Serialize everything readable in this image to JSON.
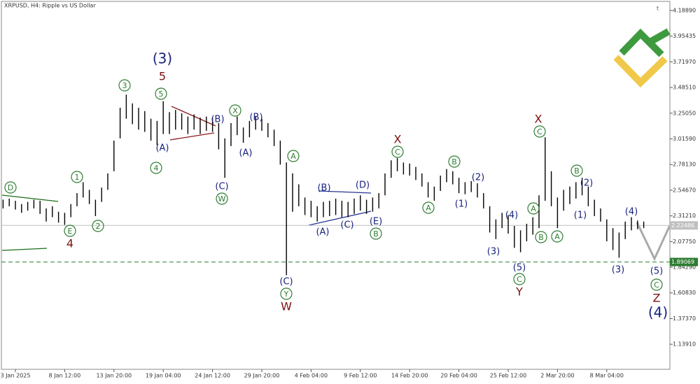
{
  "chart_data": {
    "type": "ohlc",
    "title": "XRPUSD, H4:  Ripple vs US Dollar",
    "x": [
      null,
      null,
      "3 Jan 2025",
      null,
      null,
      null,
      null,
      null,
      null,
      null,
      "8 Jan 12:00",
      null,
      null,
      null,
      null,
      null,
      null,
      null,
      "13 Jan 20:00",
      null,
      null,
      null,
      null,
      null,
      null,
      null,
      "19 Jan 04:00",
      null,
      null,
      null,
      null,
      null,
      null,
      null,
      "24 Jan 12:00",
      null,
      null,
      null,
      null,
      null,
      null,
      null,
      "29 Jan 20:00",
      null,
      null,
      null,
      null,
      null,
      null,
      null,
      "4 Feb 04:00",
      null,
      null,
      null,
      null,
      null,
      null,
      null,
      "9 Feb 12:00",
      null,
      null,
      null,
      null,
      null,
      null,
      null,
      "14 Feb 20:00",
      null,
      null,
      null,
      null,
      null,
      null,
      null,
      "20 Feb 04:00",
      null,
      null,
      null,
      null,
      null,
      null,
      null,
      "25 Feb 12:00",
      null,
      null,
      null,
      null,
      null,
      null,
      null,
      "2 Mar 20:00",
      null,
      null,
      null,
      null,
      null,
      null,
      null,
      "8 Mar 04:00",
      null,
      null,
      null,
      null,
      null,
      null
    ],
    "high": [
      2.46,
      2.47,
      2.45,
      2.42,
      2.44,
      2.46,
      2.45,
      2.38,
      2.4,
      2.35,
      2.34,
      2.42,
      2.52,
      2.62,
      2.55,
      2.46,
      2.57,
      2.7,
      3.0,
      3.3,
      3.42,
      3.34,
      3.3,
      3.27,
      3.2,
      3.18,
      3.36,
      3.26,
      3.28,
      3.25,
      3.22,
      3.24,
      3.21,
      3.22,
      3.21,
      3.16,
      3.02,
      3.16,
      3.22,
      3.12,
      3.18,
      3.22,
      3.2,
      3.16,
      3.1,
      3.0,
      2.8,
      2.7,
      2.6,
      2.48,
      2.45,
      2.4,
      2.44,
      2.45,
      2.47,
      2.45,
      2.44,
      2.47,
      2.5,
      2.46,
      2.48,
      2.52,
      2.7,
      2.82,
      2.84,
      2.8,
      2.79,
      2.76,
      2.7,
      2.62,
      2.58,
      2.68,
      2.74,
      2.72,
      2.66,
      2.62,
      2.63,
      2.61,
      2.52,
      2.4,
      2.28,
      2.34,
      2.32,
      2.22,
      2.18,
      2.24,
      2.3,
      2.5,
      3.03,
      2.72,
      2.48,
      2.55,
      2.58,
      2.62,
      2.66,
      2.58,
      2.46,
      2.38,
      2.28,
      2.2,
      2.16,
      2.26,
      2.3,
      2.27,
      2.26
    ],
    "low": [
      2.38,
      2.4,
      2.37,
      2.34,
      2.36,
      2.38,
      2.33,
      2.26,
      2.3,
      2.25,
      2.23,
      2.3,
      2.4,
      2.48,
      2.42,
      2.31,
      2.44,
      2.55,
      2.72,
      3.02,
      3.2,
      3.15,
      3.1,
      3.08,
      3.0,
      2.96,
      3.06,
      3.06,
      3.1,
      3.1,
      3.06,
      3.1,
      3.06,
      3.09,
      3.08,
      2.92,
      2.66,
      2.95,
      3.05,
      2.98,
      3.03,
      3.1,
      3.09,
      3.03,
      2.95,
      2.78,
      1.77,
      2.35,
      2.4,
      2.32,
      2.3,
      2.26,
      2.3,
      2.31,
      2.32,
      2.3,
      2.3,
      2.33,
      2.36,
      2.33,
      2.35,
      2.38,
      2.5,
      2.66,
      2.72,
      2.69,
      2.68,
      2.64,
      2.58,
      2.48,
      2.45,
      2.54,
      2.62,
      2.6,
      2.52,
      2.51,
      2.53,
      2.48,
      2.38,
      2.16,
      2.1,
      2.2,
      2.15,
      2.02,
      1.98,
      2.08,
      2.14,
      2.2,
      2.45,
      2.4,
      2.2,
      2.36,
      2.42,
      2.47,
      2.5,
      2.4,
      2.31,
      2.26,
      2.08,
      2.0,
      1.93,
      2.1,
      2.18,
      2.19,
      2.2
    ],
    "color": "#000000",
    "ylim": [
      0.91,
      4.272
    ],
    "yticks": [
      {
        "value": 4.1889,
        "label": "4.18890"
      },
      {
        "value": 3.95435,
        "label": "3.95435"
      },
      {
        "value": 3.7197,
        "label": "3.71970"
      },
      {
        "value": 3.4851,
        "label": "3.48510"
      },
      {
        "value": 3.2505,
        "label": "3.25050"
      },
      {
        "value": 3.0159,
        "label": "3.01590"
      },
      {
        "value": 2.7813,
        "label": "2.78130"
      },
      {
        "value": 2.5467,
        "label": "2.54670"
      },
      {
        "value": 2.3121,
        "label": "2.31210"
      },
      {
        "value": 2.0775,
        "label": "2.07750"
      },
      {
        "value": 1.8429,
        "label": "1.84290"
      },
      {
        "value": 1.6083,
        "label": "1.60830"
      },
      {
        "value": 1.3737,
        "label": "1.37370"
      },
      {
        "value": 1.1391,
        "label": "1.13910"
      }
    ],
    "price_lines": [
      {
        "value": 2.22486,
        "color": "#c0c0c0"
      },
      {
        "value": 1.89069,
        "color": "#2e7d32"
      }
    ],
    "annotations": [
      {
        "text": "(3)",
        "color": "#1a237e"
      },
      {
        "text": "5",
        "color": "#7b1010"
      },
      {
        "text": "3",
        "color": "#2e7d32",
        "circled": true
      },
      {
        "text": "5",
        "color": "#2e7d32",
        "circled": true
      },
      {
        "text": "(A)",
        "color": "#1a237e"
      },
      {
        "text": "4",
        "color": "#2e7d32",
        "circled": true
      },
      {
        "text": "1",
        "color": "#2e7d32",
        "circled": true
      },
      {
        "text": "2",
        "color": "#2e7d32",
        "circled": true
      },
      {
        "text": "D",
        "color": "#2e7d32",
        "circled": true
      },
      {
        "text": "E",
        "color": "#2e7d32",
        "circled": true
      },
      {
        "text": "4",
        "color": "#7b1010"
      },
      {
        "text": "(B)",
        "color": "#1a237e"
      },
      {
        "text": "X",
        "color": "#2e7d32",
        "circled": true
      },
      {
        "text": "(B)",
        "color": "#1a237e"
      },
      {
        "text": "(A)",
        "color": "#1a237e"
      },
      {
        "text": "(C)",
        "color": "#1a237e"
      },
      {
        "text": "W",
        "color": "#2e7d32",
        "circled": true
      },
      {
        "text": "A",
        "color": "#2e7d32",
        "circled": true
      },
      {
        "text": "(C)",
        "color": "#1a237e"
      },
      {
        "text": "Y",
        "color": "#2e7d32",
        "circled": true
      },
      {
        "text": "W",
        "color": "#7b1010"
      },
      {
        "text": "(B)",
        "color": "#1a237e"
      },
      {
        "text": "(D)",
        "color": "#1a237e"
      },
      {
        "text": "(A)",
        "color": "#1a237e"
      },
      {
        "text": "(C)",
        "color": "#1a237e"
      },
      {
        "text": "(E)",
        "color": "#1a237e"
      },
      {
        "text": "B",
        "color": "#2e7d32",
        "circled": true
      },
      {
        "text": "X",
        "color": "#7b1010"
      },
      {
        "text": "C",
        "color": "#2e7d32",
        "circled": true
      },
      {
        "text": "B",
        "color": "#2e7d32",
        "circled": true
      },
      {
        "text": "A",
        "color": "#2e7d32",
        "circled": true
      },
      {
        "text": "(2)",
        "color": "#1a237e"
      },
      {
        "text": "(1)",
        "color": "#1a237e"
      },
      {
        "text": "(4)",
        "color": "#1a237e"
      },
      {
        "text": "(3)",
        "color": "#1a237e"
      },
      {
        "text": "(5)",
        "color": "#1a237e"
      },
      {
        "text": "C",
        "color": "#2e7d32",
        "circled": true
      },
      {
        "text": "Y",
        "color": "#7b1010"
      },
      {
        "text": "X",
        "color": "#7b1010"
      },
      {
        "text": "C",
        "color": "#2e7d32",
        "circled": true
      },
      {
        "text": "A",
        "color": "#2e7d32",
        "circled": true
      },
      {
        "text": "B",
        "color": "#2e7d32",
        "circled": true
      },
      {
        "text": "A",
        "color": "#2e7d32",
        "circled": true
      },
      {
        "text": "B",
        "color": "#2e7d32",
        "circled": true
      },
      {
        "text": "(2)",
        "color": "#1a237e"
      },
      {
        "text": "(1)",
        "color": "#1a237e"
      },
      {
        "text": "(4)",
        "color": "#1a237e"
      },
      {
        "text": "(3)",
        "color": "#1a237e"
      },
      {
        "text": "(5)",
        "color": "#1a237e"
      },
      {
        "text": "C",
        "color": "#2e7d32",
        "circled": true
      },
      {
        "text": "Z",
        "color": "#7b1010"
      },
      {
        "text": "(4)",
        "color": "#1a237e"
      }
    ]
  }
}
